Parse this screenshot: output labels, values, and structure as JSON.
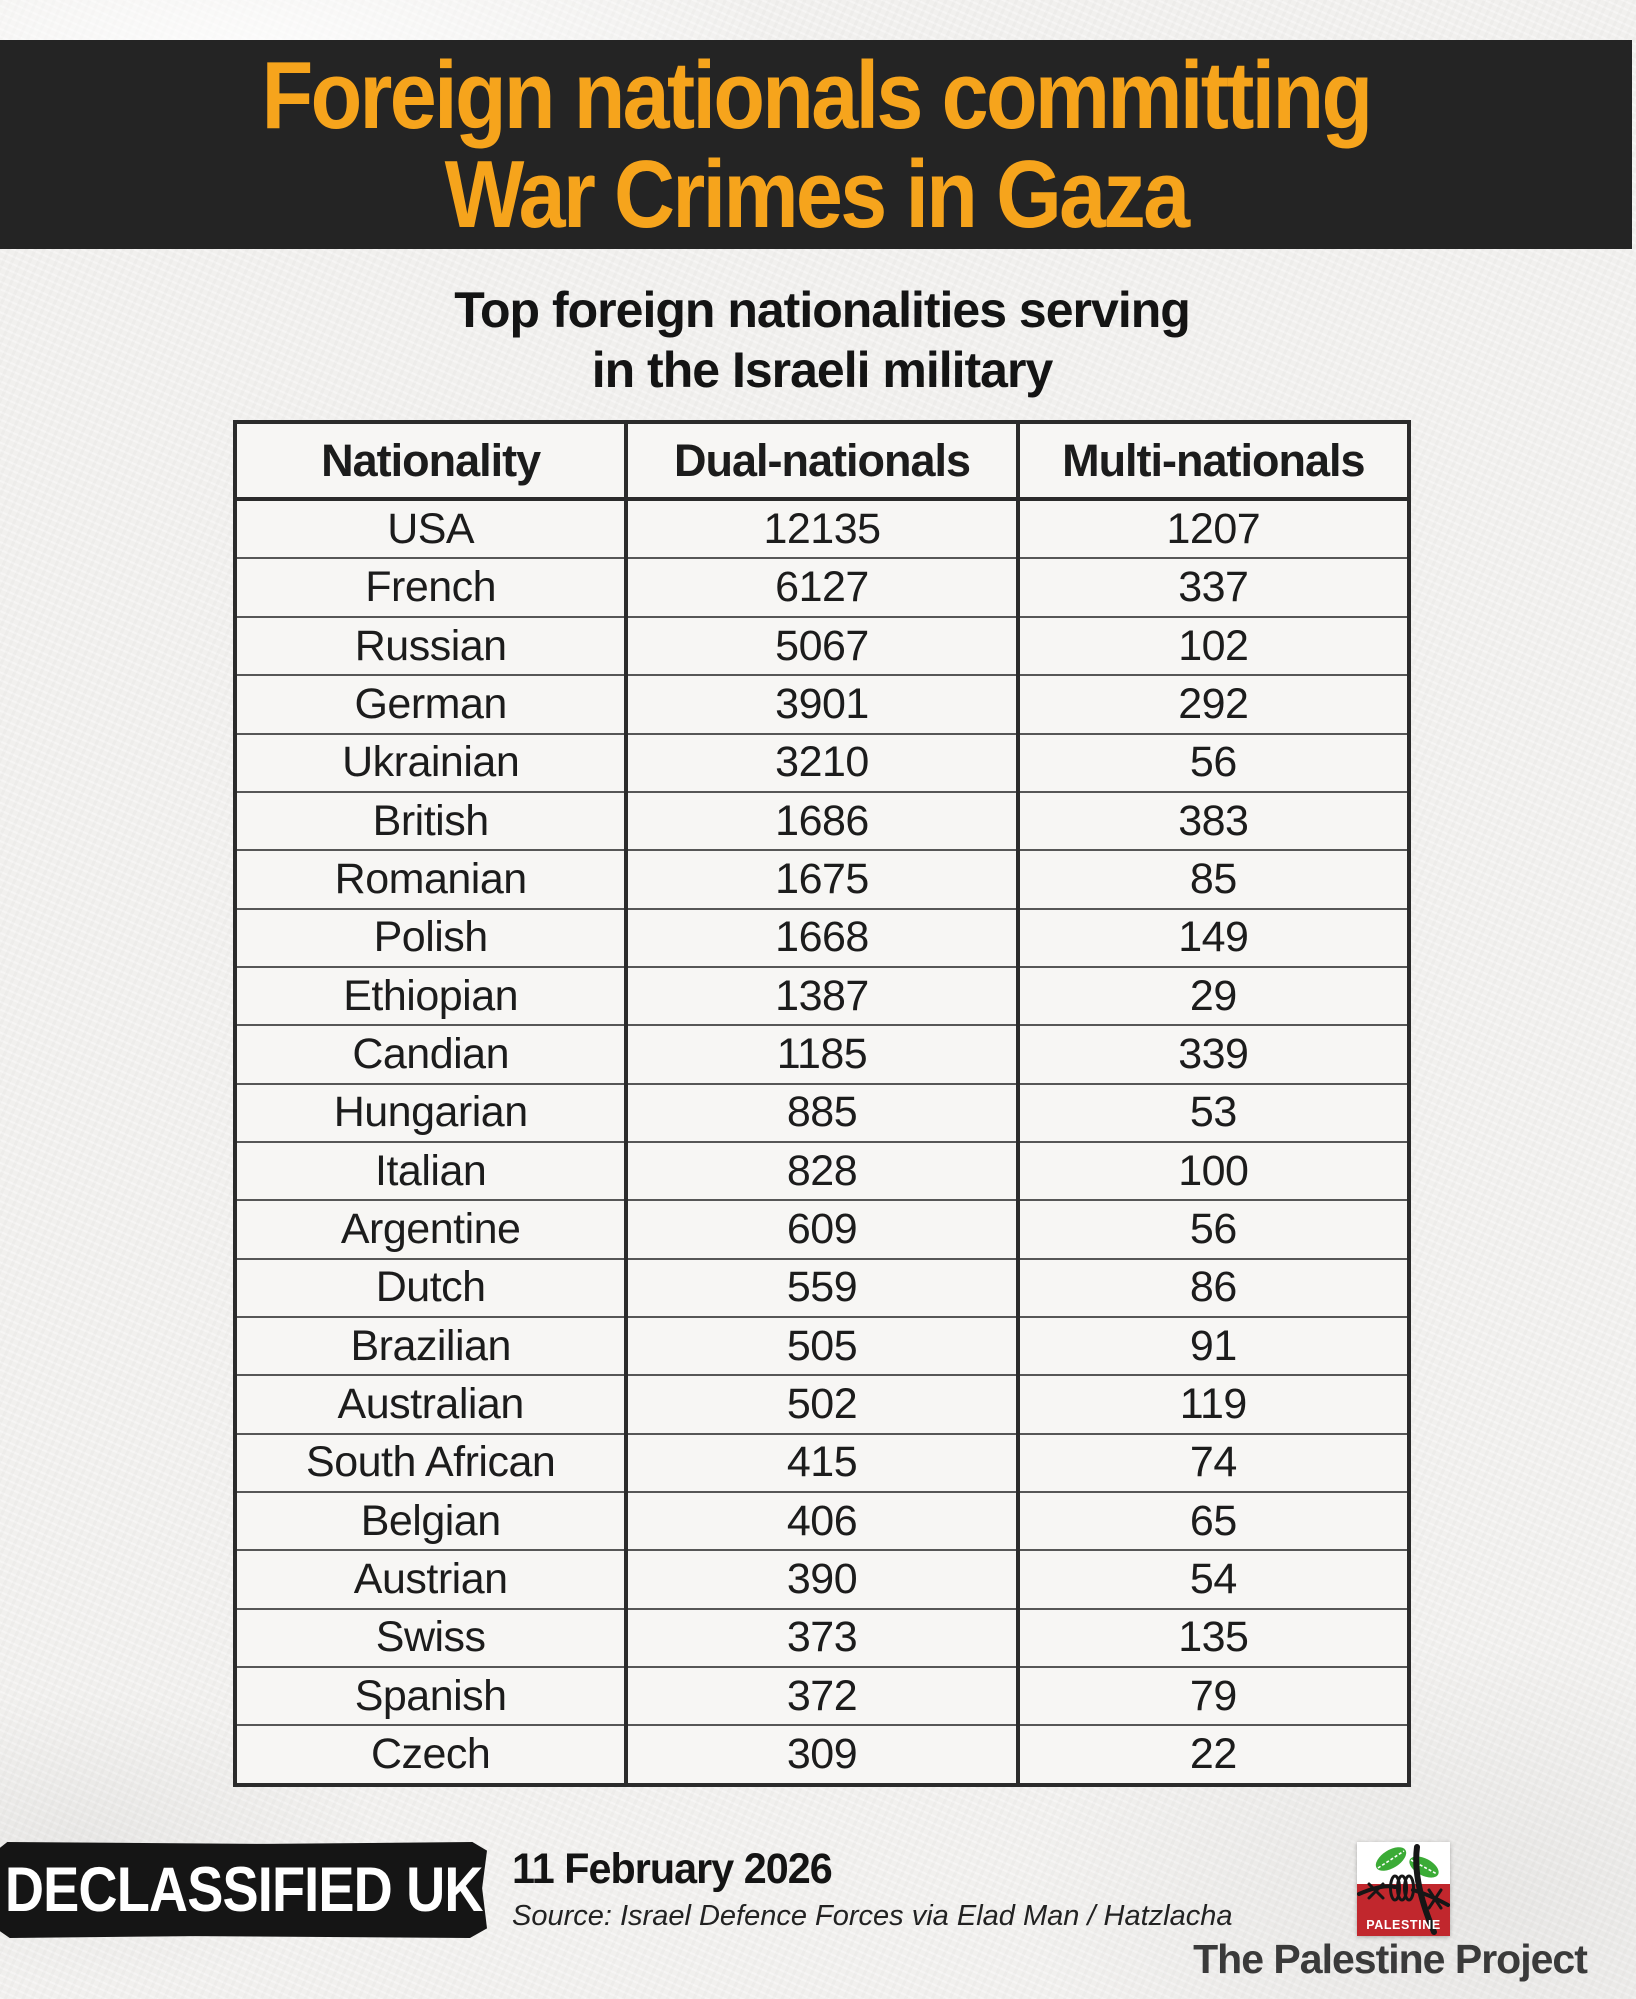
{
  "banner": {
    "title_line1": "Foreign nationals committing",
    "title_line2": "War Crimes in Gaza"
  },
  "subtitle": {
    "line1": "Top foreign nationalities serving",
    "line2": "in the Israeli military"
  },
  "chart_data": {
    "type": "table",
    "title": "Top foreign nationalities serving in the Israeli military",
    "columns": [
      "Nationality",
      "Dual-nationals",
      "Multi-nationals"
    ],
    "rows": [
      [
        "USA",
        "12135",
        "1207"
      ],
      [
        "French",
        "6127",
        "337"
      ],
      [
        "Russian",
        "5067",
        "102"
      ],
      [
        "German",
        "3901",
        "292"
      ],
      [
        "Ukrainian",
        "3210",
        "56"
      ],
      [
        "British",
        "1686",
        "383"
      ],
      [
        "Romanian",
        "1675",
        "85"
      ],
      [
        "Polish",
        "1668",
        "149"
      ],
      [
        "Ethiopian",
        "1387",
        "29"
      ],
      [
        "Candian",
        "1185",
        "339"
      ],
      [
        "Hungarian",
        "885",
        "53"
      ],
      [
        "Italian",
        "828",
        "100"
      ],
      [
        "Argentine",
        "609",
        "56"
      ],
      [
        "Dutch",
        "559",
        "86"
      ],
      [
        "Brazilian",
        "505",
        "91"
      ],
      [
        "Australian",
        "502",
        "119"
      ],
      [
        "South African",
        "415",
        "74"
      ],
      [
        "Belgian",
        "406",
        "65"
      ],
      [
        "Austrian",
        "390",
        "54"
      ],
      [
        "Swiss",
        "373",
        "135"
      ],
      [
        "Spanish",
        "372",
        "79"
      ],
      [
        "Czech",
        "309",
        "22"
      ]
    ]
  },
  "footer": {
    "brand": "DECLASSIFIED UK",
    "date": "11 February 2026",
    "source": "Source: Israel Defence Forces via Elad Man / Hatzlacha",
    "logo_label": "PALESTINE",
    "credit": "The Palestine Project"
  },
  "colors": {
    "accent_orange": "#F6A41C",
    "banner_bg": "#242424",
    "paper_bg": "#f1f0ee",
    "stamp_bg": "#151515",
    "logo_red": "#C1272D",
    "logo_green": "#3BAB36"
  }
}
